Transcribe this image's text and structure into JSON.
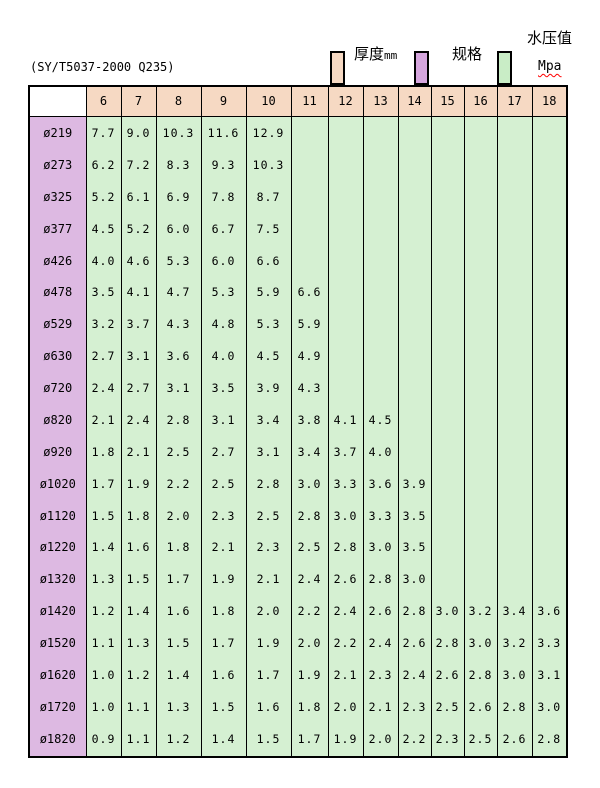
{
  "document": {
    "standard_note": "(SY/T5037-2000 Q235)"
  },
  "legend": {
    "thickness_label": "厚度",
    "thickness_unit": "mm",
    "thickness_color": "#f6d9c3",
    "spec_label": "规格",
    "spec_color": "#d6a6de",
    "pressure_label": "水压值",
    "pressure_unit": "Mpa",
    "pressure_color": "#c9edc6"
  },
  "table": {
    "corner_label": "",
    "thickness_headers": [
      "6",
      "7",
      "8",
      "9",
      "10",
      "11",
      "12",
      "13",
      "14",
      "15",
      "16",
      "17",
      "18"
    ],
    "header_bg": "#f6d9c3",
    "spec_bg": "#ddb9e2",
    "value_bg": "#d5f0d2",
    "rows": [
      {
        "spec": "ø219",
        "values": [
          "7.7",
          "9.0",
          "10.3",
          "11.6",
          "12.9",
          "",
          "",
          "",
          "",
          "",
          "",
          "",
          ""
        ]
      },
      {
        "spec": "ø273",
        "values": [
          "6.2",
          "7.2",
          "8.3",
          "9.3",
          "10.3",
          "",
          "",
          "",
          "",
          "",
          "",
          "",
          ""
        ]
      },
      {
        "spec": "ø325",
        "values": [
          "5.2",
          "6.1",
          "6.9",
          "7.8",
          "8.7",
          "",
          "",
          "",
          "",
          "",
          "",
          "",
          ""
        ]
      },
      {
        "spec": "ø377",
        "values": [
          "4.5",
          "5.2",
          "6.0",
          "6.7",
          "7.5",
          "",
          "",
          "",
          "",
          "",
          "",
          "",
          ""
        ]
      },
      {
        "spec": "ø426",
        "values": [
          "4.0",
          "4.6",
          "5.3",
          "6.0",
          "6.6",
          "",
          "",
          "",
          "",
          "",
          "",
          "",
          ""
        ]
      },
      {
        "spec": "ø478",
        "values": [
          "3.5",
          "4.1",
          "4.7",
          "5.3",
          "5.9",
          "6.6",
          "",
          "",
          "",
          "",
          "",
          "",
          ""
        ]
      },
      {
        "spec": "ø529",
        "values": [
          "3.2",
          "3.7",
          "4.3",
          "4.8",
          "5.3",
          "5.9",
          "",
          "",
          "",
          "",
          "",
          "",
          ""
        ]
      },
      {
        "spec": "ø630",
        "values": [
          "2.7",
          "3.1",
          "3.6",
          "4.0",
          "4.5",
          "4.9",
          "",
          "",
          "",
          "",
          "",
          "",
          ""
        ]
      },
      {
        "spec": "ø720",
        "values": [
          "2.4",
          "2.7",
          "3.1",
          "3.5",
          "3.9",
          "4.3",
          "",
          "",
          "",
          "",
          "",
          "",
          ""
        ]
      },
      {
        "spec": "ø820",
        "values": [
          "2.1",
          "2.4",
          "2.8",
          "3.1",
          "3.4",
          "3.8",
          "4.1",
          "4.5",
          "",
          "",
          "",
          "",
          ""
        ]
      },
      {
        "spec": "ø920",
        "values": [
          "1.8",
          "2.1",
          "2.5",
          "2.7",
          "3.1",
          "3.4",
          "3.7",
          "4.0",
          "",
          "",
          "",
          "",
          ""
        ]
      },
      {
        "spec": "ø1020",
        "values": [
          "1.7",
          "1.9",
          "2.2",
          "2.5",
          "2.8",
          "3.0",
          "3.3",
          "3.6",
          "3.9",
          "",
          "",
          "",
          ""
        ]
      },
      {
        "spec": "ø1120",
        "values": [
          "1.5",
          "1.8",
          "2.0",
          "2.3",
          "2.5",
          "2.8",
          "3.0",
          "3.3",
          "3.5",
          "",
          "",
          "",
          ""
        ]
      },
      {
        "spec": "ø1220",
        "values": [
          "1.4",
          "1.6",
          "1.8",
          "2.1",
          "2.3",
          "2.5",
          "2.8",
          "3.0",
          "3.5",
          "",
          "",
          "",
          ""
        ]
      },
      {
        "spec": "ø1320",
        "values": [
          "1.3",
          "1.5",
          "1.7",
          "1.9",
          "2.1",
          "2.4",
          "2.6",
          "2.8",
          "3.0",
          "",
          "",
          "",
          ""
        ]
      },
      {
        "spec": "ø1420",
        "values": [
          "1.2",
          "1.4",
          "1.6",
          "1.8",
          "2.0",
          "2.2",
          "2.4",
          "2.6",
          "2.8",
          "3.0",
          "3.2",
          "3.4",
          "3.6"
        ]
      },
      {
        "spec": "ø1520",
        "values": [
          "1.1",
          "1.3",
          "1.5",
          "1.7",
          "1.9",
          "2.0",
          "2.2",
          "2.4",
          "2.6",
          "2.8",
          "3.0",
          "3.2",
          "3.3"
        ]
      },
      {
        "spec": "ø1620",
        "values": [
          "1.0",
          "1.2",
          "1.4",
          "1.6",
          "1.7",
          "1.9",
          "2.1",
          "2.3",
          "2.4",
          "2.6",
          "2.8",
          "3.0",
          "3.1"
        ]
      },
      {
        "spec": "ø1720",
        "values": [
          "1.0",
          "1.1",
          "1.3",
          "1.5",
          "1.6",
          "1.8",
          "2.0",
          "2.1",
          "2.3",
          "2.5",
          "2.6",
          "2.8",
          "3.0"
        ]
      },
      {
        "spec": "ø1820",
        "values": [
          "0.9",
          "1.1",
          "1.2",
          "1.4",
          "1.5",
          "1.7",
          "1.9",
          "2.0",
          "2.2",
          "2.3",
          "2.5",
          "2.6",
          "2.8"
        ]
      }
    ]
  }
}
